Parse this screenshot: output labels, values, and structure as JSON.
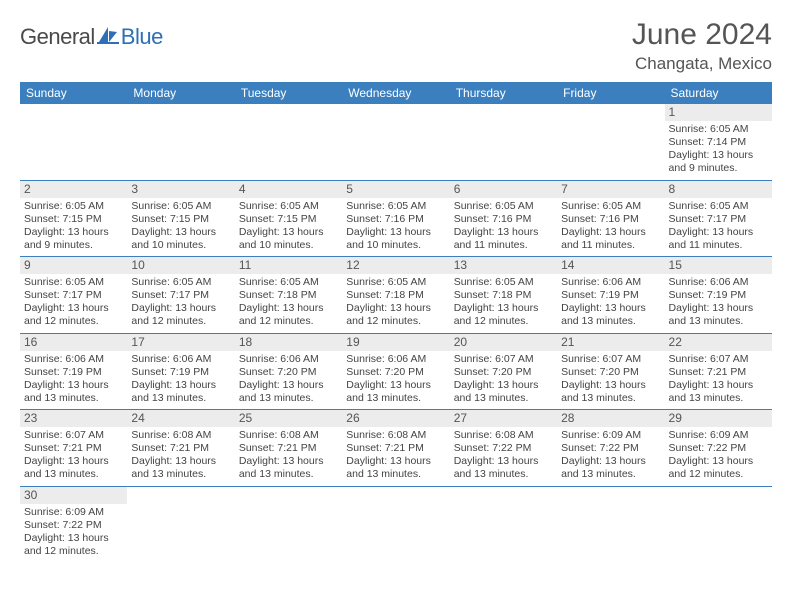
{
  "logo": {
    "part1": "General",
    "part2": "Blue",
    "sail_color": "#2e6fb5"
  },
  "title": "June 2024",
  "location": "Changata, Mexico",
  "colors": {
    "header_bg": "#3b7fbf",
    "header_text": "#ffffff",
    "daynum_bg": "#ececec",
    "cell_border": "#3b7fbf",
    "text": "#444444"
  },
  "typography": {
    "title_fontsize": 30,
    "location_fontsize": 17,
    "th_fontsize": 12,
    "daynum_fontsize": 12,
    "cell_fontsize": 10.5
  },
  "layout": {
    "columns": 7,
    "rows": 6,
    "start_weekday": "Sunday"
  },
  "weekdays": [
    "Sunday",
    "Monday",
    "Tuesday",
    "Wednesday",
    "Thursday",
    "Friday",
    "Saturday"
  ],
  "days": [
    {
      "n": 1,
      "sunrise": "6:05 AM",
      "sunset": "7:14 PM",
      "daylight": "13 hours and 9 minutes."
    },
    {
      "n": 2,
      "sunrise": "6:05 AM",
      "sunset": "7:15 PM",
      "daylight": "13 hours and 9 minutes."
    },
    {
      "n": 3,
      "sunrise": "6:05 AM",
      "sunset": "7:15 PM",
      "daylight": "13 hours and 10 minutes."
    },
    {
      "n": 4,
      "sunrise": "6:05 AM",
      "sunset": "7:15 PM",
      "daylight": "13 hours and 10 minutes."
    },
    {
      "n": 5,
      "sunrise": "6:05 AM",
      "sunset": "7:16 PM",
      "daylight": "13 hours and 10 minutes."
    },
    {
      "n": 6,
      "sunrise": "6:05 AM",
      "sunset": "7:16 PM",
      "daylight": "13 hours and 11 minutes."
    },
    {
      "n": 7,
      "sunrise": "6:05 AM",
      "sunset": "7:16 PM",
      "daylight": "13 hours and 11 minutes."
    },
    {
      "n": 8,
      "sunrise": "6:05 AM",
      "sunset": "7:17 PM",
      "daylight": "13 hours and 11 minutes."
    },
    {
      "n": 9,
      "sunrise": "6:05 AM",
      "sunset": "7:17 PM",
      "daylight": "13 hours and 12 minutes."
    },
    {
      "n": 10,
      "sunrise": "6:05 AM",
      "sunset": "7:17 PM",
      "daylight": "13 hours and 12 minutes."
    },
    {
      "n": 11,
      "sunrise": "6:05 AM",
      "sunset": "7:18 PM",
      "daylight": "13 hours and 12 minutes."
    },
    {
      "n": 12,
      "sunrise": "6:05 AM",
      "sunset": "7:18 PM",
      "daylight": "13 hours and 12 minutes."
    },
    {
      "n": 13,
      "sunrise": "6:05 AM",
      "sunset": "7:18 PM",
      "daylight": "13 hours and 12 minutes."
    },
    {
      "n": 14,
      "sunrise": "6:06 AM",
      "sunset": "7:19 PM",
      "daylight": "13 hours and 13 minutes."
    },
    {
      "n": 15,
      "sunrise": "6:06 AM",
      "sunset": "7:19 PM",
      "daylight": "13 hours and 13 minutes."
    },
    {
      "n": 16,
      "sunrise": "6:06 AM",
      "sunset": "7:19 PM",
      "daylight": "13 hours and 13 minutes."
    },
    {
      "n": 17,
      "sunrise": "6:06 AM",
      "sunset": "7:19 PM",
      "daylight": "13 hours and 13 minutes."
    },
    {
      "n": 18,
      "sunrise": "6:06 AM",
      "sunset": "7:20 PM",
      "daylight": "13 hours and 13 minutes."
    },
    {
      "n": 19,
      "sunrise": "6:06 AM",
      "sunset": "7:20 PM",
      "daylight": "13 hours and 13 minutes."
    },
    {
      "n": 20,
      "sunrise": "6:07 AM",
      "sunset": "7:20 PM",
      "daylight": "13 hours and 13 minutes."
    },
    {
      "n": 21,
      "sunrise": "6:07 AM",
      "sunset": "7:20 PM",
      "daylight": "13 hours and 13 minutes."
    },
    {
      "n": 22,
      "sunrise": "6:07 AM",
      "sunset": "7:21 PM",
      "daylight": "13 hours and 13 minutes."
    },
    {
      "n": 23,
      "sunrise": "6:07 AM",
      "sunset": "7:21 PM",
      "daylight": "13 hours and 13 minutes."
    },
    {
      "n": 24,
      "sunrise": "6:08 AM",
      "sunset": "7:21 PM",
      "daylight": "13 hours and 13 minutes."
    },
    {
      "n": 25,
      "sunrise": "6:08 AM",
      "sunset": "7:21 PM",
      "daylight": "13 hours and 13 minutes."
    },
    {
      "n": 26,
      "sunrise": "6:08 AM",
      "sunset": "7:21 PM",
      "daylight": "13 hours and 13 minutes."
    },
    {
      "n": 27,
      "sunrise": "6:08 AM",
      "sunset": "7:22 PM",
      "daylight": "13 hours and 13 minutes."
    },
    {
      "n": 28,
      "sunrise": "6:09 AM",
      "sunset": "7:22 PM",
      "daylight": "13 hours and 13 minutes."
    },
    {
      "n": 29,
      "sunrise": "6:09 AM",
      "sunset": "7:22 PM",
      "daylight": "13 hours and 12 minutes."
    },
    {
      "n": 30,
      "sunrise": "6:09 AM",
      "sunset": "7:22 PM",
      "daylight": "13 hours and 12 minutes."
    }
  ],
  "labels": {
    "sunrise": "Sunrise:",
    "sunset": "Sunset:",
    "daylight": "Daylight:"
  }
}
